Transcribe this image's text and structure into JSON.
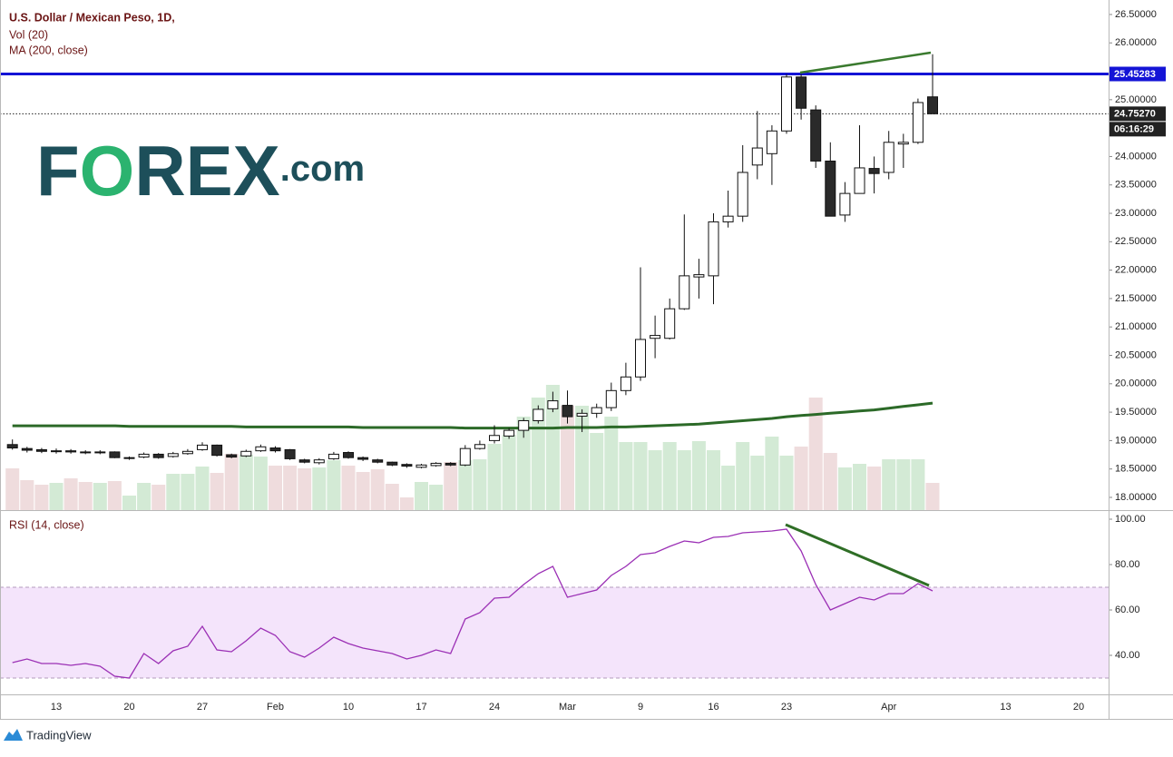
{
  "chart_data": [
    {
      "type": "candlestick",
      "title": "U.S. Dollar / Mexican Peso, 1D,",
      "categories": [
        null,
        null,
        null,
        "13",
        null,
        null,
        null,
        null,
        "20",
        null,
        null,
        null,
        null,
        "27",
        null,
        null,
        null,
        null,
        "Feb",
        null,
        null,
        null,
        null,
        "10",
        null,
        null,
        null,
        null,
        "17",
        null,
        null,
        null,
        null,
        "24",
        null,
        null,
        null,
        null,
        "Mar",
        null,
        null,
        null,
        null,
        "9",
        null,
        null,
        null,
        null,
        "16",
        null,
        null,
        null,
        null,
        "23",
        null,
        null,
        null,
        null,
        null,
        null,
        "Apr",
        null,
        null,
        null,
        null,
        null,
        null,
        null,
        "13",
        null,
        null,
        null,
        null,
        "20",
        null,
        null
      ],
      "open": [
        18.93,
        18.86,
        18.84,
        18.81,
        18.82,
        18.8,
        18.79,
        18.8,
        18.7,
        18.71,
        18.76,
        18.72,
        18.77,
        18.84,
        18.92,
        18.75,
        18.73,
        18.82,
        18.87,
        18.84,
        18.66,
        18.61,
        18.68,
        18.79,
        18.7,
        18.66,
        18.62,
        18.58,
        18.53,
        18.56,
        18.6,
        18.57,
        18.86,
        19.0,
        19.08,
        19.18,
        19.35,
        19.56,
        19.62,
        19.43,
        19.48,
        19.58,
        19.88,
        20.12,
        20.8,
        20.8,
        21.32,
        21.88,
        21.9,
        22.85,
        22.95,
        23.85,
        24.05,
        24.45,
        25.4,
        24.82,
        23.92,
        22.97,
        23.35,
        23.79,
        23.72,
        24.22,
        24.25,
        25.05,
        null,
        null,
        null,
        null,
        null,
        null,
        null,
        null,
        null,
        null,
        null,
        null
      ],
      "high": [
        19.02,
        18.89,
        18.87,
        18.86,
        18.85,
        18.83,
        18.83,
        18.81,
        18.72,
        18.79,
        18.78,
        18.8,
        18.85,
        18.97,
        18.93,
        18.77,
        18.84,
        18.93,
        18.9,
        18.85,
        18.68,
        18.69,
        18.8,
        18.81,
        18.72,
        18.68,
        18.63,
        18.6,
        18.59,
        18.62,
        18.62,
        18.92,
        19.0,
        19.27,
        19.22,
        19.4,
        19.62,
        19.86,
        19.88,
        19.55,
        19.65,
        20.02,
        20.37,
        22.05,
        21.2,
        21.5,
        22.98,
        22.2,
        23.0,
        23.4,
        24.2,
        24.8,
        24.55,
        25.45,
        25.45,
        24.9,
        24.25,
        23.55,
        24.55,
        24.0,
        24.45,
        24.4,
        25.02,
        25.8,
        null,
        null,
        null,
        null,
        null,
        null,
        null,
        null,
        null,
        null,
        null,
        null
      ],
      "low": [
        18.84,
        18.79,
        18.78,
        18.77,
        18.77,
        18.76,
        18.76,
        18.69,
        18.66,
        18.69,
        18.68,
        18.7,
        18.75,
        18.82,
        18.72,
        18.69,
        18.71,
        18.8,
        18.79,
        18.66,
        18.6,
        18.58,
        18.66,
        18.68,
        18.64,
        18.6,
        18.55,
        18.52,
        18.51,
        18.54,
        18.55,
        18.55,
        18.84,
        18.95,
        19.03,
        19.05,
        19.3,
        19.5,
        19.3,
        19.15,
        19.4,
        19.52,
        19.8,
        20.05,
        20.45,
        20.78,
        21.3,
        21.5,
        21.4,
        22.75,
        22.85,
        23.6,
        23.5,
        24.4,
        24.65,
        23.8,
        22.95,
        22.85,
        23.35,
        23.35,
        23.6,
        23.8,
        24.22,
        24.75,
        null,
        null,
        null,
        null,
        null,
        null,
        null,
        null,
        null,
        null,
        null,
        null
      ],
      "close": [
        18.87,
        18.83,
        18.81,
        18.82,
        18.8,
        18.79,
        18.8,
        18.7,
        18.7,
        18.76,
        18.7,
        18.77,
        18.81,
        18.92,
        18.74,
        18.71,
        18.81,
        18.89,
        18.82,
        18.68,
        18.62,
        18.66,
        18.76,
        18.7,
        18.67,
        18.62,
        18.57,
        18.55,
        18.57,
        18.6,
        18.57,
        18.86,
        18.93,
        19.09,
        19.18,
        19.35,
        19.55,
        19.7,
        19.42,
        19.48,
        19.58,
        19.88,
        20.12,
        20.78,
        20.85,
        21.32,
        21.9,
        21.92,
        22.85,
        22.95,
        23.72,
        24.15,
        24.45,
        25.4,
        24.85,
        23.92,
        22.95,
        23.35,
        23.8,
        23.7,
        24.25,
        24.25,
        24.95,
        24.7527,
        null,
        null,
        null,
        null,
        null,
        null,
        null,
        null,
        null,
        null,
        null,
        null
      ],
      "up_color": "#ffffff",
      "down_color": "#2a2a2a",
      "wick_color": "#111111",
      "ylim": [
        17.776,
        26.755
      ],
      "yticks": [
        {
          "value": 18.0,
          "label": "18.00000"
        },
        {
          "value": 18.5,
          "label": "18.50000"
        },
        {
          "value": 19.0,
          "label": "19.00000"
        },
        {
          "value": 19.5,
          "label": "19.50000"
        },
        {
          "value": 20.0,
          "label": "20.00000"
        },
        {
          "value": 20.5,
          "label": "20.50000"
        },
        {
          "value": 21.0,
          "label": "21.00000"
        },
        {
          "value": 21.5,
          "label": "21.50000"
        },
        {
          "value": 22.0,
          "label": "22.00000"
        },
        {
          "value": 22.5,
          "label": "22.50000"
        },
        {
          "value": 23.0,
          "label": "23.00000"
        },
        {
          "value": 23.5,
          "label": "23.50000"
        },
        {
          "value": 24.0,
          "label": "24.00000"
        },
        {
          "value": 25.0,
          "label": "25.00000"
        },
        {
          "value": 26.0,
          "label": "26.00000"
        },
        {
          "value": 26.5,
          "label": "26.50000"
        }
      ],
      "price_line": {
        "value": 24.7527,
        "label": "24.75270",
        "countdown": "06:16:29",
        "color": "#222222"
      },
      "horizontal_line": {
        "value": 25.45283,
        "label": "25.45283",
        "color": "#1414d6"
      },
      "volume": {
        "name": "Vol (20)",
        "ylim": [
          0,
          562
        ],
        "up_color": "#d3ead5",
        "down_color": "#efdcdd",
        "values": [
          46,
          33,
          28,
          30,
          35,
          31,
          30,
          32,
          16,
          30,
          28,
          40,
          40,
          48,
          41,
          62,
          61,
          59,
          49,
          49,
          46,
          47,
          55,
          49,
          42,
          45,
          29,
          14,
          31,
          28,
          53,
          55,
          56,
          73,
          83,
          103,
          124,
          138,
          115,
          115,
          85,
          103,
          75,
          75,
          66,
          75,
          66,
          76,
          66,
          49,
          75,
          60,
          81,
          60,
          70,
          124,
          63,
          47,
          51,
          48,
          56,
          56,
          56,
          30,
          null,
          null,
          null,
          null,
          null,
          null,
          null,
          null,
          null,
          null,
          null,
          null
        ]
      },
      "moving_average": {
        "name": "MA (200, close)",
        "color": "#2c6a28",
        "values": [
          19.26,
          19.26,
          19.26,
          19.26,
          19.26,
          19.26,
          19.26,
          19.26,
          19.25,
          19.25,
          19.25,
          19.25,
          19.25,
          19.25,
          19.25,
          19.25,
          19.24,
          19.24,
          19.24,
          19.24,
          19.24,
          19.24,
          19.24,
          19.24,
          19.23,
          19.23,
          19.23,
          19.23,
          19.23,
          19.23,
          19.23,
          19.22,
          19.22,
          19.22,
          19.22,
          19.22,
          19.22,
          19.22,
          19.23,
          19.23,
          19.23,
          19.24,
          19.24,
          19.25,
          19.26,
          19.27,
          19.28,
          19.29,
          19.31,
          19.33,
          19.35,
          19.37,
          19.39,
          19.42,
          19.44,
          19.46,
          19.48,
          19.5,
          19.52,
          19.54,
          19.57,
          19.6,
          19.63,
          19.66,
          null,
          null,
          null,
          null,
          null,
          null,
          null,
          null,
          null,
          null,
          null,
          null
        ]
      }
    },
    {
      "type": "line",
      "series": [
        {
          "name": "RSI (14, close)",
          "color": "#9b30b5",
          "values": [
            36.8,
            38.4,
            36.4,
            36.4,
            35.6,
            36.4,
            35.2,
            30.8,
            30.0,
            40.8,
            36.4,
            42.0,
            44.0,
            52.8,
            42.4,
            41.6,
            46.4,
            52.0,
            48.8,
            41.6,
            39.2,
            43.2,
            48.0,
            45.2,
            43.2,
            42.0,
            40.8,
            38.4,
            40.0,
            42.4,
            40.8,
            56.0,
            58.8,
            65.2,
            65.6,
            71.2,
            76.0,
            79.2,
            65.6,
            67.2,
            68.8,
            75.2,
            79.2,
            84.4,
            85.2,
            88.0,
            90.4,
            89.6,
            92.0,
            92.4,
            94.0,
            94.4,
            94.8,
            95.6,
            86.0,
            71.2,
            60.0,
            62.8,
            65.6,
            64.4,
            67.2,
            67.2,
            71.6,
            68.4,
            null,
            null,
            null,
            null,
            null,
            null,
            null,
            null,
            null,
            null,
            null,
            null
          ]
        }
      ],
      "ylim": [
        22.8,
        104
      ],
      "yticks": [
        {
          "value": 40,
          "label": "40.00"
        },
        {
          "value": 60,
          "label": "60.00"
        },
        {
          "value": 80,
          "label": "80.00"
        },
        {
          "value": 100,
          "label": "100.00"
        }
      ],
      "band": [
        30,
        70
      ],
      "band_color": "#f4e4fb",
      "band_line_color": "#b39bbd"
    }
  ],
  "watermark": {
    "parts": [
      "F",
      "O",
      "REX",
      ".com"
    ]
  },
  "footer": {
    "brand": "TradingView"
  }
}
